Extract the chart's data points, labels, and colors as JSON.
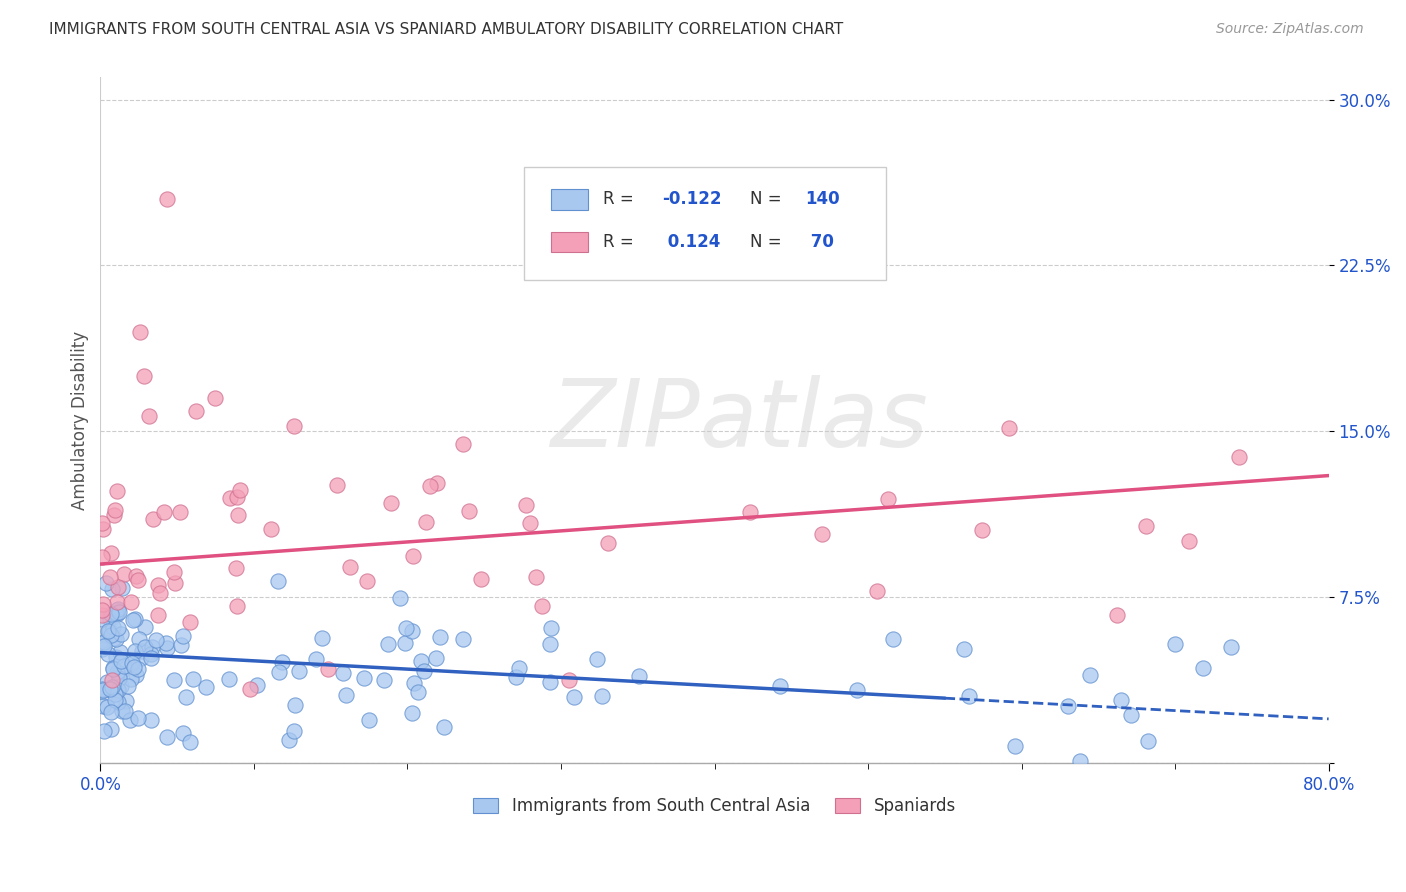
{
  "title": "IMMIGRANTS FROM SOUTH CENTRAL ASIA VS SPANIARD AMBULATORY DISABILITY CORRELATION CHART",
  "source": "Source: ZipAtlas.com",
  "ylabel": "Ambulatory Disability",
  "y_ticks": [
    0.0,
    0.075,
    0.15,
    0.225,
    0.3
  ],
  "y_tick_labels": [
    "",
    "7.5%",
    "15.0%",
    "22.5%",
    "30.0%"
  ],
  "blue_R": -0.122,
  "blue_N": 140,
  "pink_R": 0.124,
  "pink_N": 70,
  "blue_color": "#A8C8F0",
  "pink_color": "#F4A0B8",
  "blue_line_color": "#3060C0",
  "pink_line_color": "#E05080",
  "blue_edge_color": "#6090D0",
  "pink_edge_color": "#D07090",
  "watermark": "ZIPatlas",
  "background_color": "#FFFFFF",
  "grid_color": "#CCCCCC",
  "xlim": [
    0.0,
    0.8
  ],
  "ylim": [
    0.0,
    0.31
  ],
  "legend_R_color": "#333333",
  "legend_val_color": "#2255CC",
  "tick_color": "#2255CC",
  "title_color": "#333333",
  "source_color": "#999999"
}
